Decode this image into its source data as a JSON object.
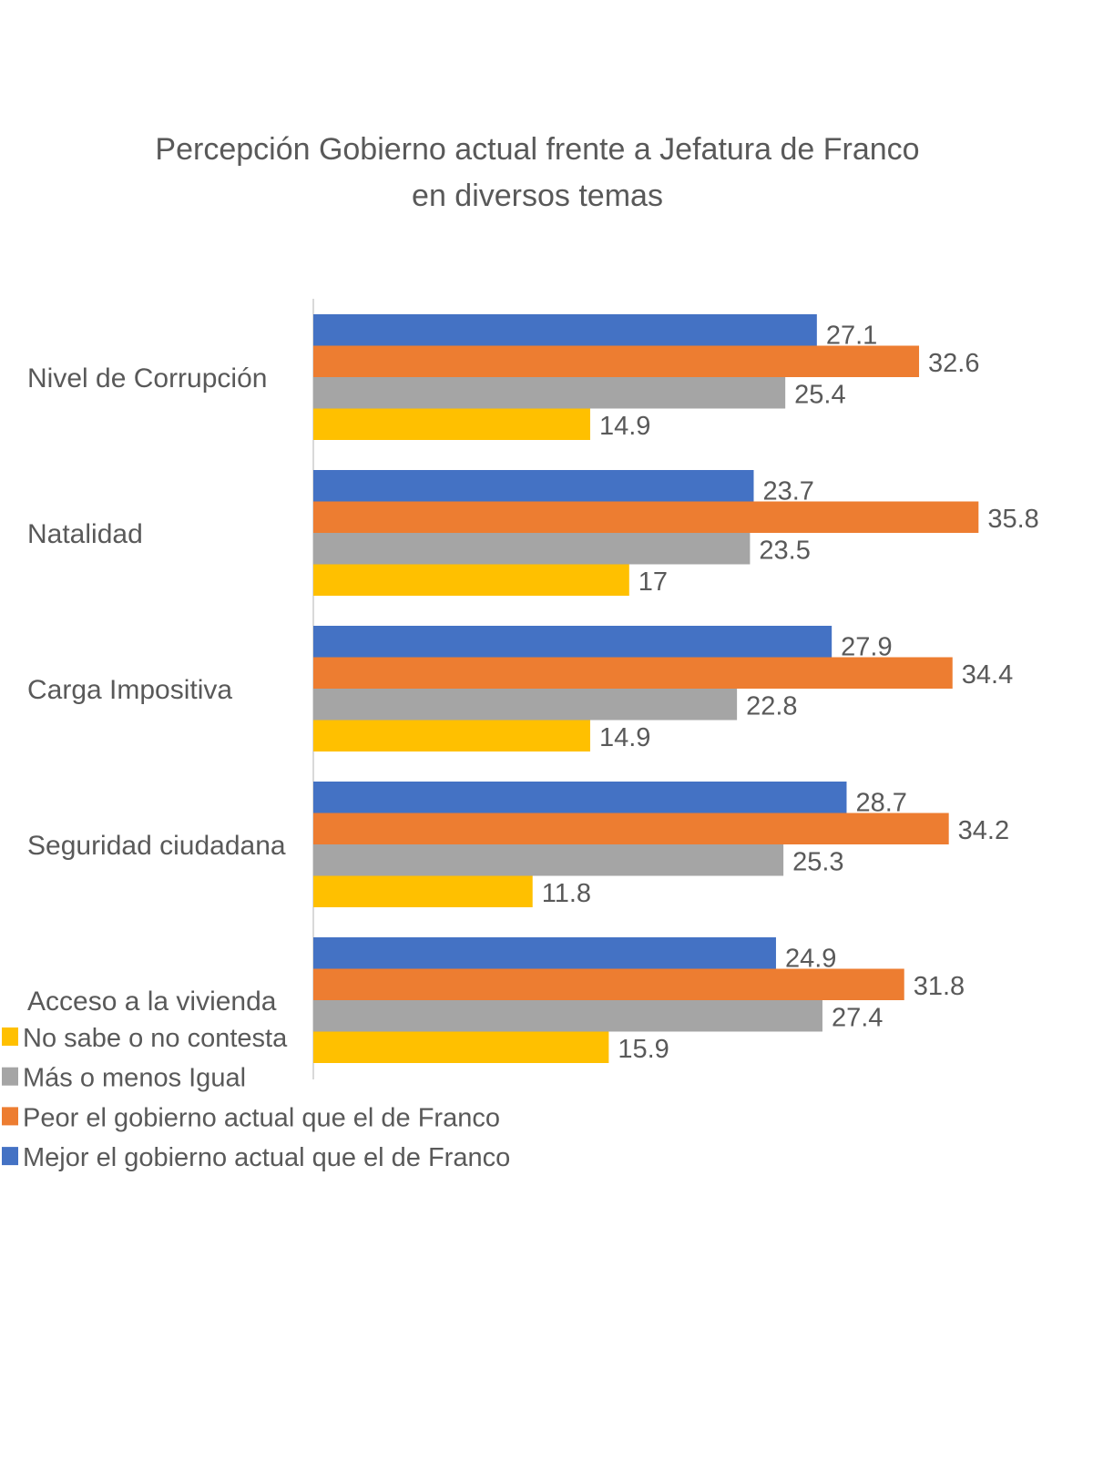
{
  "chart_data": {
    "type": "bar",
    "orientation": "horizontal",
    "title": "Percepción Gobierno actual frente a Jefatura de Franco en diversos temas",
    "title_lines": [
      "Percepción Gobierno actual frente a Jefatura de Franco",
      "en diversos temas"
    ],
    "categories": [
      "Nivel de Corrupción",
      "Natalidad",
      "Carga Impositiva",
      "Seguridad ciudadana",
      "Acceso a la vivienda"
    ],
    "series": [
      {
        "name": "Mejor el gobierno actual que el de Franco",
        "color": "#4472C4",
        "values": [
          27.1,
          23.7,
          27.9,
          28.7,
          24.9
        ]
      },
      {
        "name": "Peor el gobierno actual que el de Franco",
        "color": "#ED7D31",
        "values": [
          32.6,
          35.8,
          34.4,
          34.2,
          31.8
        ]
      },
      {
        "name": "Más o menos Igual",
        "color": "#A5A5A5",
        "values": [
          25.4,
          23.5,
          22.8,
          25.3,
          27.4
        ]
      },
      {
        "name": "No sabe o no contesta",
        "color": "#FFC000",
        "values": [
          14.9,
          17,
          14.9,
          11.8,
          15.9
        ]
      }
    ],
    "legend_order": [
      "No sabe o no contesta",
      "Más o menos Igual",
      "Peor el gobierno actual que el de Franco",
      "Mejor el gobierno actual que el de Franco"
    ],
    "legend_placement": "bottom-left",
    "data_labels": true,
    "grid": false,
    "xlim": [
      0,
      40
    ]
  }
}
